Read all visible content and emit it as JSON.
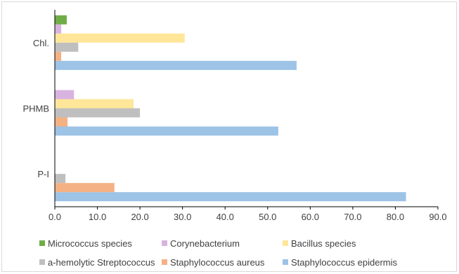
{
  "chart_data": {
    "type": "bar",
    "orientation": "horizontal",
    "categories": [
      "P-I",
      "PHMB",
      "Chl."
    ],
    "series": [
      {
        "name": "Staphylococcus epidermis",
        "color": "#9dc3e6",
        "values": [
          82.5,
          52.5,
          56.8
        ]
      },
      {
        "name": "Staphylococcus aureus",
        "color": "#f4b183",
        "values": [
          14.0,
          3.0,
          1.5
        ]
      },
      {
        "name": "a-hemolytic Streptococcus",
        "color": "#bfbfbf",
        "values": [
          2.5,
          20.0,
          5.5
        ]
      },
      {
        "name": "Bacillus species",
        "color": "#ffe699",
        "values": [
          0,
          18.5,
          30.5
        ]
      },
      {
        "name": "Corynebacterium",
        "color": "#d9b3e0",
        "values": [
          0,
          4.5,
          1.5
        ]
      },
      {
        "name": "Micrococcus species",
        "color": "#70ad47",
        "values": [
          0,
          0,
          2.8
        ]
      }
    ],
    "xlim": [
      0,
      90
    ],
    "xticks": [
      "0.0",
      "10.0",
      "20.0",
      "30.0",
      "40.0",
      "50.0",
      "60.0",
      "70.0",
      "80.0",
      "90.0"
    ],
    "legend_position": "bottom",
    "legend_order": [
      "Micrococcus species",
      "Corynebacterium",
      "Bacillus species",
      "a-hemolytic Streptococcus",
      "Staphylococcus aureus",
      "Staphylococcus epidermis"
    ],
    "grid": false
  }
}
